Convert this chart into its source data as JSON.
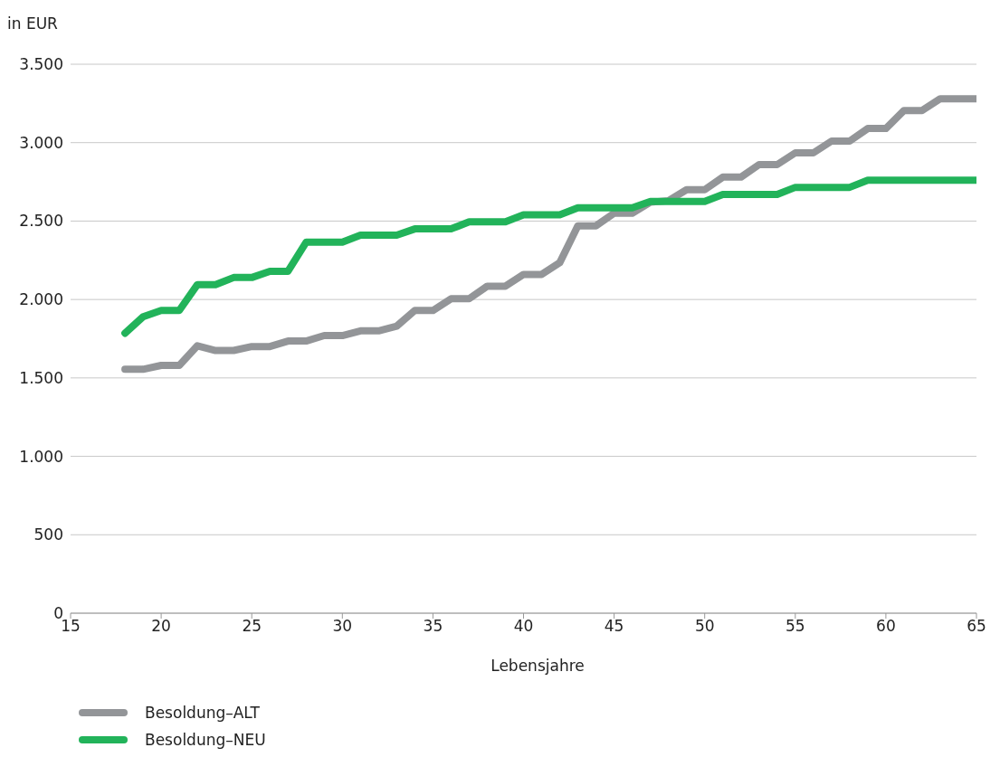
{
  "chart_data": {
    "type": "line",
    "ylabel": "in EUR",
    "xlabel": "Lebensjahre",
    "x": [
      18,
      19,
      20,
      21,
      22,
      23,
      24,
      25,
      26,
      27,
      28,
      29,
      30,
      31,
      32,
      33,
      34,
      35,
      36,
      37,
      38,
      39,
      40,
      41,
      42,
      43,
      44,
      45,
      46,
      47,
      48,
      49,
      50,
      51,
      52,
      53,
      54,
      55,
      56,
      57,
      58,
      59,
      60,
      61,
      62,
      63,
      64,
      65
    ],
    "series": [
      {
        "name": "Besoldung–ALT",
        "color": "#939598",
        "values": [
          1555,
          1555,
          1580,
          1580,
          1705,
          1675,
          1675,
          1700,
          1700,
          1735,
          1735,
          1770,
          1770,
          1800,
          1800,
          1830,
          1930,
          1930,
          2005,
          2005,
          2085,
          2085,
          2160,
          2160,
          2235,
          2470,
          2470,
          2550,
          2550,
          2620,
          2630,
          2700,
          2700,
          2780,
          2780,
          2860,
          2860,
          2935,
          2935,
          3010,
          3010,
          3090,
          3090,
          3205,
          3205,
          3280,
          3280,
          3280
        ]
      },
      {
        "name": "Besoldung–NEU",
        "color": "#22b35a",
        "values": [
          1785,
          1890,
          1930,
          1930,
          2095,
          2095,
          2140,
          2140,
          2180,
          2180,
          2365,
          2365,
          2365,
          2410,
          2410,
          2410,
          2450,
          2450,
          2450,
          2495,
          2495,
          2495,
          2540,
          2540,
          2540,
          2585,
          2585,
          2585,
          2585,
          2625,
          2625,
          2625,
          2625,
          2670,
          2670,
          2670,
          2670,
          2715,
          2715,
          2715,
          2715,
          2760,
          2760,
          2760,
          2760,
          2760,
          2760,
          2760
        ]
      }
    ],
    "xlim": [
      15,
      65
    ],
    "xticks": [
      15,
      20,
      25,
      30,
      35,
      40,
      45,
      50,
      55,
      60,
      65
    ],
    "ylim": [
      0,
      3500
    ],
    "yticks": [
      0,
      {
        "value": 500,
        "label": "500"
      },
      {
        "value": 1000,
        "label": "1.000"
      },
      {
        "value": 1500,
        "label": "1.500"
      },
      {
        "value": 2000,
        "label": "2.000"
      },
      {
        "value": 2500,
        "label": "2.500"
      },
      {
        "value": 3000,
        "label": "3.000"
      },
      {
        "value": 3500,
        "label": "3.500"
      }
    ],
    "grid": "y",
    "legend": "bottom left",
    "marker": "none",
    "line_style": "solid"
  }
}
